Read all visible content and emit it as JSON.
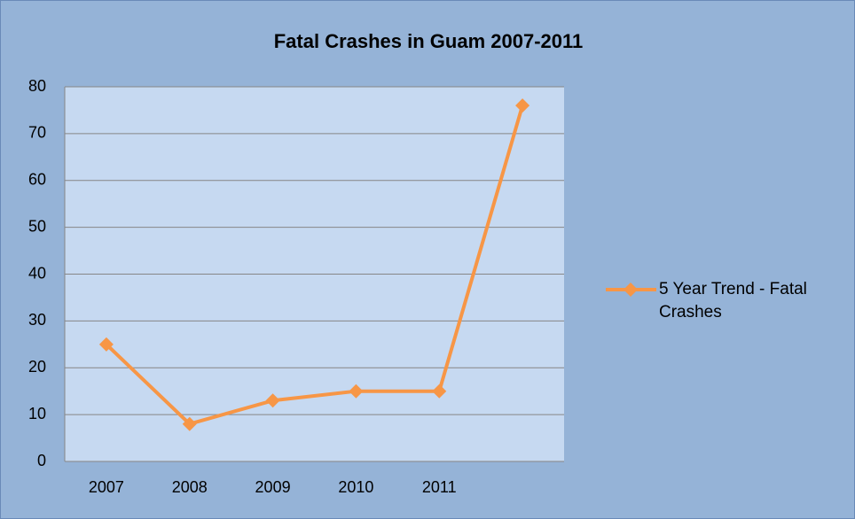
{
  "chart_data": {
    "type": "line",
    "title": "Fatal Crashes in Guam 2007-2011",
    "categories": [
      "2007",
      "2008",
      "2009",
      "2010",
      "2011",
      null
    ],
    "series": [
      {
        "name": "5 Year Trend - Fatal Crashes",
        "color": "#f79646",
        "values": [
          25,
          8,
          13,
          15,
          15,
          76
        ]
      }
    ],
    "ylim": [
      0,
      80
    ],
    "yticks": [
      0,
      10,
      20,
      30,
      40,
      50,
      60,
      70,
      80
    ],
    "grid": true,
    "legend": "right"
  }
}
